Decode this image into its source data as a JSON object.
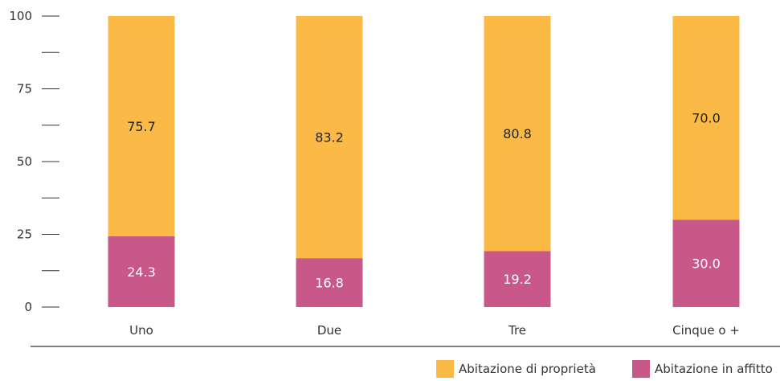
{
  "chart_data": {
    "type": "bar",
    "stacked": true,
    "title": "",
    "xlabel": "",
    "ylabel": "",
    "categories": [
      "Uno",
      "Due",
      "Tre",
      "Cinque o +"
    ],
    "ylim": [
      0,
      100
    ],
    "yticks": [
      "0",
      "25",
      "50",
      "75",
      "100"
    ],
    "grid": false,
    "legend_placement": "bottom-right",
    "series": [
      {
        "name": "Abitazione in affitto",
        "color": "#c8578a",
        "values": [
          24.3,
          16.8,
          19.2,
          30.0
        ],
        "labels": [
          "24.3",
          "16.8",
          "19.2",
          "30.0"
        ]
      },
      {
        "name": "Abitazione di proprietà",
        "color": "#fbb946",
        "values": [
          75.7,
          83.2,
          80.8,
          70.0
        ],
        "labels": [
          "75.7",
          "83.2",
          "80.8",
          "70.0"
        ]
      }
    ]
  }
}
